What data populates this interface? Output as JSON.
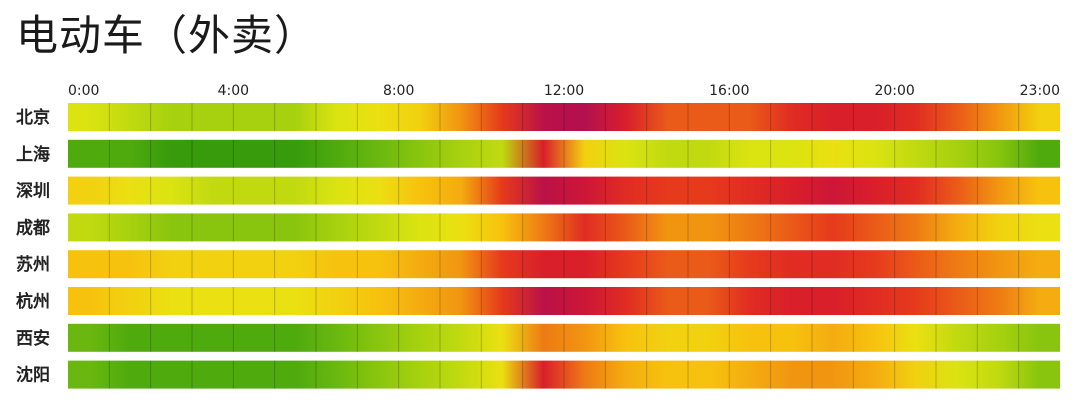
{
  "title": "电动车（外卖）",
  "chart_data": {
    "type": "heatmap",
    "title": "电动车（外卖）",
    "hours": [
      0,
      1,
      2,
      3,
      4,
      5,
      6,
      7,
      8,
      9,
      10,
      11,
      12,
      13,
      14,
      15,
      16,
      17,
      18,
      19,
      20,
      21,
      22,
      23
    ],
    "tick_labels": [
      "0:00",
      "4:00",
      "8:00",
      "12:00",
      "16:00",
      "20:00",
      "23:00"
    ],
    "rows": [
      "北京",
      "上海",
      "深圳",
      "成都",
      "苏州",
      "杭州",
      "西安",
      "沈阳"
    ],
    "value_scale": "0 = green (low) → 1 = crimson (high)",
    "values": [
      [
        0.35,
        0.3,
        0.25,
        0.25,
        0.25,
        0.25,
        0.35,
        0.4,
        0.45,
        0.6,
        0.75,
        0.95,
        0.97,
        0.85,
        0.7,
        0.7,
        0.7,
        0.8,
        0.85,
        0.85,
        0.8,
        0.7,
        0.6,
        0.45
      ],
      [
        0.1,
        0.1,
        0.05,
        0.05,
        0.05,
        0.05,
        0.1,
        0.15,
        0.2,
        0.25,
        0.3,
        0.85,
        0.45,
        0.35,
        0.3,
        0.3,
        0.35,
        0.35,
        0.4,
        0.35,
        0.3,
        0.25,
        0.2,
        0.1
      ],
      [
        0.45,
        0.4,
        0.35,
        0.3,
        0.3,
        0.3,
        0.35,
        0.4,
        0.5,
        0.55,
        0.75,
        0.95,
        0.9,
        0.8,
        0.75,
        0.75,
        0.8,
        0.85,
        0.9,
        0.85,
        0.8,
        0.7,
        0.6,
        0.5
      ],
      [
        0.3,
        0.25,
        0.2,
        0.2,
        0.2,
        0.2,
        0.25,
        0.3,
        0.35,
        0.4,
        0.5,
        0.65,
        0.8,
        0.7,
        0.6,
        0.6,
        0.65,
        0.7,
        0.75,
        0.7,
        0.65,
        0.55,
        0.45,
        0.4
      ],
      [
        0.5,
        0.5,
        0.45,
        0.45,
        0.45,
        0.45,
        0.5,
        0.5,
        0.55,
        0.6,
        0.75,
        0.85,
        0.85,
        0.75,
        0.7,
        0.7,
        0.75,
        0.8,
        0.8,
        0.75,
        0.7,
        0.65,
        0.6,
        0.55
      ],
      [
        0.5,
        0.45,
        0.4,
        0.4,
        0.4,
        0.4,
        0.45,
        0.5,
        0.55,
        0.6,
        0.75,
        0.95,
        0.9,
        0.8,
        0.7,
        0.7,
        0.8,
        0.85,
        0.85,
        0.8,
        0.75,
        0.7,
        0.65,
        0.55
      ],
      [
        0.15,
        0.1,
        0.1,
        0.1,
        0.1,
        0.1,
        0.15,
        0.2,
        0.25,
        0.3,
        0.4,
        0.65,
        0.6,
        0.5,
        0.45,
        0.45,
        0.5,
        0.5,
        0.55,
        0.5,
        0.4,
        0.3,
        0.25,
        0.2
      ],
      [
        0.15,
        0.1,
        0.1,
        0.1,
        0.1,
        0.1,
        0.15,
        0.2,
        0.25,
        0.3,
        0.4,
        0.85,
        0.65,
        0.55,
        0.5,
        0.5,
        0.55,
        0.6,
        0.6,
        0.55,
        0.45,
        0.35,
        0.3,
        0.2
      ]
    ],
    "color_stops": [
      "#1f8c0a",
      "#5bb20f",
      "#a7d10e",
      "#e8e812",
      "#f7c20e",
      "#f08a12",
      "#e63a1c",
      "#d6182e",
      "#a80d5a"
    ],
    "grid": true
  }
}
